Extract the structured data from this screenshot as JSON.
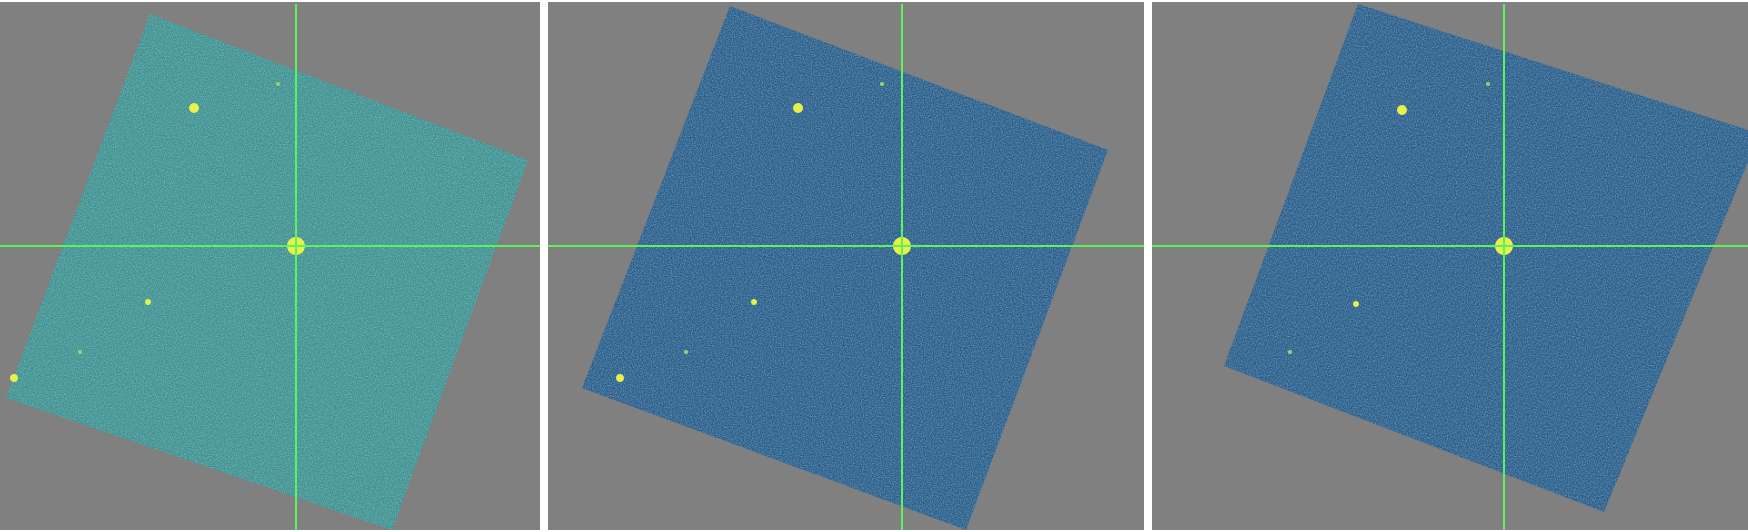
{
  "colors": {
    "background": "#808080",
    "separator": "#ffffff",
    "crosshair": "#5cf25c",
    "source": "#e8f04a"
  },
  "panels": [
    {
      "id": "panel-1",
      "field_tint": "#3f8f90",
      "noise_light": "#6fc39c",
      "noise_dark": "#1f3c66"
    },
    {
      "id": "panel-2",
      "field_tint": "#2c5a8c",
      "noise_light": "#4fa08e",
      "noise_dark": "#1a1f5a"
    },
    {
      "id": "panel-3",
      "field_tint": "#2c5a8c",
      "noise_light": "#4f9c8e",
      "noise_dark": "#1a1f5a"
    }
  ]
}
